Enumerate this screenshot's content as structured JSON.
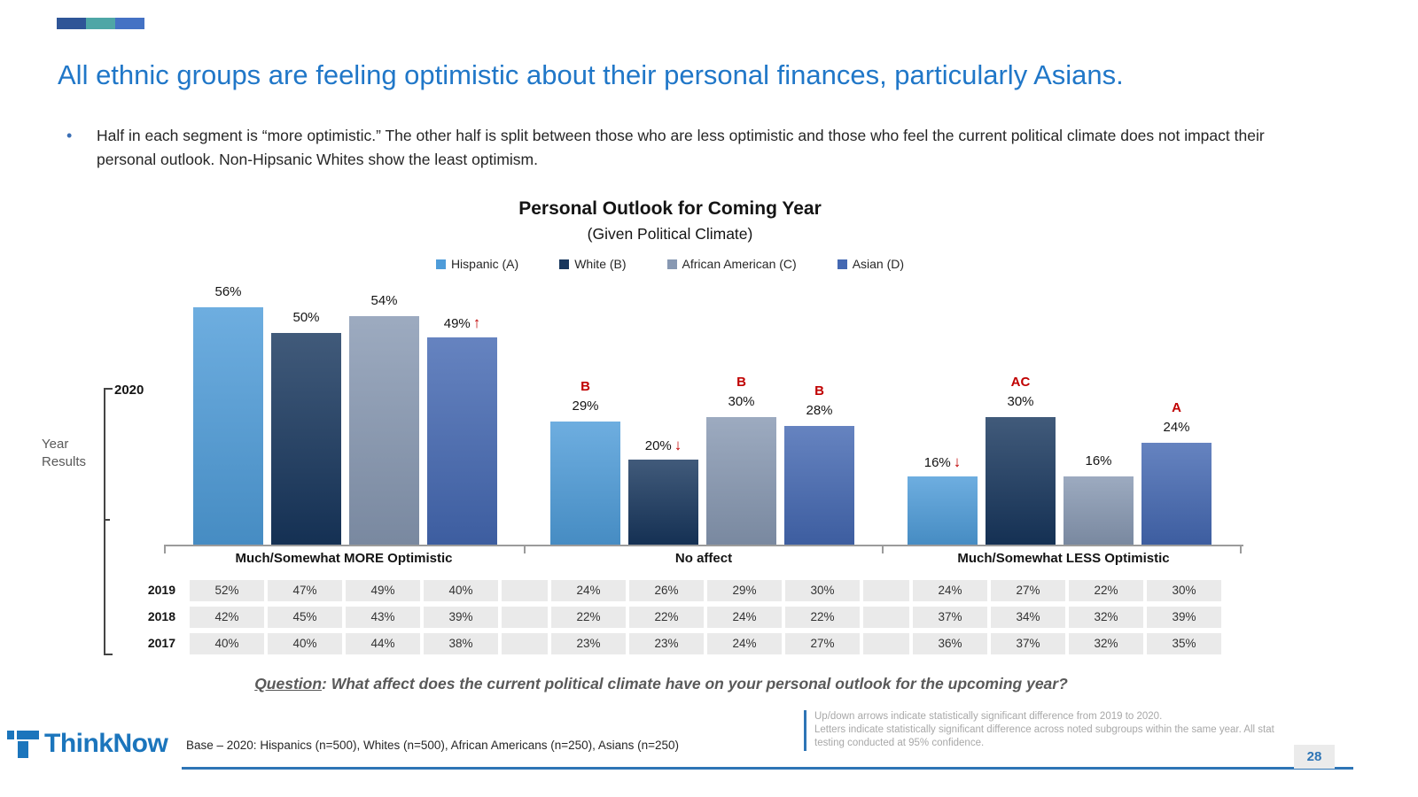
{
  "theme": {
    "accent": "#2077C8",
    "sig_red": "#C00000",
    "rule_blue": "#2E75B6",
    "deco": [
      "#2F5597",
      "#4EA6A6",
      "#4472C4"
    ]
  },
  "slide": {
    "title": "All ethnic groups are feeling optimistic about their personal finances, particularly Asians.",
    "bullet": "Half in each segment is “more optimistic.” The other half is split between those who are less optimistic and those who feel the current political climate does not impact their personal outlook. Non-Hipsanic Whites show the least optimism.",
    "page_number": "28"
  },
  "chart_data": {
    "type": "bar",
    "title": "Personal Outlook for Coming Year",
    "subtitle": "(Given Political Climate)",
    "categories": [
      "Much/Somewhat MORE Optimistic",
      "No affect",
      "Much/Somewhat LESS Optimistic"
    ],
    "ylim": [
      0,
      60
    ],
    "year_label": "2020",
    "series": [
      {
        "name": "Hispanic (A)",
        "color": "#4E9CD9",
        "values": [
          56,
          29,
          16
        ],
        "arrows": [
          null,
          null,
          "down"
        ],
        "sig": [
          null,
          "B",
          null
        ]
      },
      {
        "name": "White (B)",
        "color": "#17365D",
        "values": [
          50,
          20,
          30
        ],
        "arrows": [
          null,
          "down",
          null
        ],
        "sig": [
          null,
          null,
          "AC"
        ]
      },
      {
        "name": "African American (C)",
        "color": "#8798B2",
        "values": [
          54,
          30,
          16
        ],
        "arrows": [
          null,
          null,
          null
        ],
        "sig": [
          null,
          "B",
          null
        ]
      },
      {
        "name": "Asian (D)",
        "color": "#4468B2",
        "values": [
          49,
          28,
          24
        ],
        "arrows": [
          "up",
          null,
          null
        ],
        "sig": [
          null,
          "B",
          "A"
        ]
      }
    ],
    "history": {
      "years": [
        "2019",
        "2018",
        "2017"
      ],
      "rows": [
        [
          [
            52,
            47,
            49,
            40
          ],
          [
            24,
            26,
            29,
            30
          ],
          [
            24,
            27,
            22,
            30
          ]
        ],
        [
          [
            42,
            45,
            43,
            39
          ],
          [
            22,
            22,
            24,
            22
          ],
          [
            37,
            34,
            32,
            39
          ]
        ],
        [
          [
            40,
            40,
            44,
            38
          ],
          [
            23,
            23,
            24,
            27
          ],
          [
            36,
            37,
            32,
            35
          ]
        ]
      ]
    }
  },
  "labels": {
    "year_results": "Year Results"
  },
  "question": {
    "prefix": "Question",
    "rest": ": What affect does the current political climate have on your personal outlook for the upcoming year?"
  },
  "footer": {
    "logo": "ThinkNow",
    "base": "Base – 2020: Hispanics (n=500), Whites (n=500), African Americans (n=250), Asians (n=250)",
    "note_lines": [
      "Up/down arrows indicate statistically significant difference from 2019 to 2020.",
      "Letters indicate statistically significant difference across noted subgroups within the same year.  All stat testing conducted at 95% confidence."
    ]
  }
}
